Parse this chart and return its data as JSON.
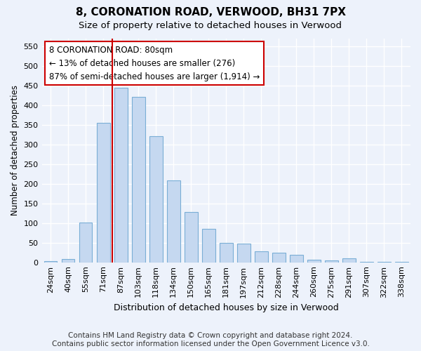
{
  "title_line1": "8, CORONATION ROAD, VERWOOD, BH31 7PX",
  "title_line2": "Size of property relative to detached houses in Verwood",
  "xlabel": "Distribution of detached houses by size in Verwood",
  "ylabel": "Number of detached properties",
  "categories": [
    "24sqm",
    "40sqm",
    "55sqm",
    "71sqm",
    "87sqm",
    "103sqm",
    "118sqm",
    "134sqm",
    "150sqm",
    "165sqm",
    "181sqm",
    "197sqm",
    "212sqm",
    "228sqm",
    "244sqm",
    "260sqm",
    "275sqm",
    "291sqm",
    "307sqm",
    "322sqm",
    "338sqm"
  ],
  "values": [
    3,
    8,
    101,
    355,
    445,
    422,
    321,
    209,
    128,
    85,
    49,
    48,
    28,
    25,
    19,
    7,
    5,
    10,
    1,
    1,
    2
  ],
  "bar_color": "#c5d8f0",
  "bar_edge_color": "#7aaed6",
  "bar_width": 0.75,
  "vline_color": "#cc0000",
  "annotation_text": "8 CORONATION ROAD: 80sqm\n← 13% of detached houses are smaller (276)\n87% of semi-detached houses are larger (1,914) →",
  "annotation_box_color": "#ffffff",
  "annotation_box_edge_color": "#cc0000",
  "ylim": [
    0,
    570
  ],
  "yticks": [
    0,
    50,
    100,
    150,
    200,
    250,
    300,
    350,
    400,
    450,
    500,
    550
  ],
  "footer_line1": "Contains HM Land Registry data © Crown copyright and database right 2024.",
  "footer_line2": "Contains public sector information licensed under the Open Government Licence v3.0.",
  "bg_color": "#edf2fb",
  "plot_bg_color": "#edf2fb",
  "grid_color": "#ffffff",
  "title_fontsize": 11,
  "subtitle_fontsize": 9.5,
  "tick_fontsize": 8,
  "ylabel_fontsize": 8.5,
  "xlabel_fontsize": 9,
  "footer_fontsize": 7.5,
  "vline_x_idx": 3
}
